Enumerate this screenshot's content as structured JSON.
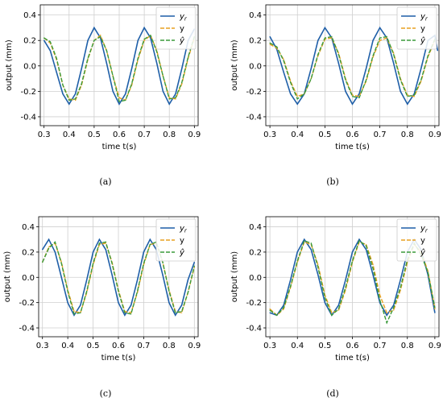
{
  "chart_data": [
    {
      "type": "line",
      "caption": "(a)",
      "xlabel": "time t(s)",
      "ylabel": "output (mm)",
      "xlim": [
        0.285,
        0.915
      ],
      "ylim": [
        -0.47,
        0.48
      ],
      "xticks": [
        "0.3",
        "0.4",
        "0.5",
        "0.6",
        "0.7",
        "0.8",
        "0.9"
      ],
      "yticks": [
        "0.4",
        "0.2",
        "0.0",
        "-0.2",
        "-0.4"
      ],
      "grid": true,
      "legend_position": "top-right",
      "colors": {
        "yr": "#1f5fa8",
        "y": "#e8a020",
        "yhat": "#3a9a3a"
      },
      "series": [
        {
          "name": "y_r",
          "label_main": "y",
          "label_sub": "r",
          "x": [
            0.3,
            0.325,
            0.35,
            0.375,
            0.4,
            0.425,
            0.45,
            0.475,
            0.5,
            0.525,
            0.55,
            0.575,
            0.6,
            0.625,
            0.65,
            0.675,
            0.7,
            0.725,
            0.75,
            0.775,
            0.8,
            0.825,
            0.85,
            0.875,
            0.9
          ],
          "y": [
            0.2,
            0.12,
            -0.05,
            -0.22,
            -0.3,
            -0.22,
            -0.02,
            0.2,
            0.3,
            0.22,
            0.02,
            -0.2,
            -0.3,
            -0.22,
            -0.02,
            0.2,
            0.3,
            0.22,
            0.02,
            -0.2,
            -0.3,
            -0.22,
            -0.02,
            0.2,
            0.29
          ]
        },
        {
          "name": "y",
          "x": [
            0.3,
            0.325,
            0.35,
            0.375,
            0.4,
            0.425,
            0.45,
            0.475,
            0.5,
            0.525,
            0.55,
            0.575,
            0.6,
            0.625,
            0.65,
            0.675,
            0.7,
            0.725,
            0.75,
            0.775,
            0.8,
            0.825,
            0.85,
            0.875,
            0.9
          ],
          "y": [
            0.22,
            0.18,
            0.05,
            -0.15,
            -0.26,
            -0.27,
            -0.15,
            0.05,
            0.2,
            0.24,
            0.12,
            -0.08,
            -0.25,
            -0.27,
            -0.15,
            0.05,
            0.2,
            0.24,
            0.12,
            -0.08,
            -0.25,
            -0.26,
            -0.14,
            0.06,
            0.22
          ]
        },
        {
          "name": "y_hat",
          "label_main": "ŷ",
          "x": [
            0.3,
            0.325,
            0.35,
            0.375,
            0.4,
            0.425,
            0.45,
            0.475,
            0.5,
            0.525,
            0.55,
            0.575,
            0.6,
            0.625,
            0.65,
            0.675,
            0.7,
            0.725,
            0.75,
            0.775,
            0.8,
            0.825,
            0.85,
            0.875,
            0.9
          ],
          "y": [
            0.22,
            0.19,
            0.06,
            -0.15,
            -0.27,
            -0.26,
            -0.14,
            0.06,
            0.2,
            0.23,
            0.12,
            -0.08,
            -0.28,
            -0.27,
            -0.14,
            0.06,
            0.21,
            0.24,
            0.11,
            -0.08,
            -0.26,
            -0.25,
            -0.13,
            0.07,
            0.23
          ]
        }
      ]
    },
    {
      "type": "line",
      "caption": "(b)",
      "xlabel": "time t(s)",
      "ylabel": "output (mm)",
      "xlim": [
        0.285,
        0.915
      ],
      "ylim": [
        -0.47,
        0.48
      ],
      "xticks": [
        "0.3",
        "0.4",
        "0.5",
        "0.6",
        "0.7",
        "0.8",
        "0.9"
      ],
      "yticks": [
        "0.4",
        "0.2",
        "0.0",
        "-0.2",
        "-0.4"
      ],
      "grid": true,
      "legend_position": "top-right",
      "colors": {
        "yr": "#1f5fa8",
        "y": "#e8a020",
        "yhat": "#3a9a3a"
      },
      "series": [
        {
          "name": "y_r",
          "label_main": "y",
          "label_sub": "r",
          "x": [
            0.3,
            0.325,
            0.35,
            0.375,
            0.4,
            0.425,
            0.45,
            0.475,
            0.5,
            0.525,
            0.55,
            0.575,
            0.6,
            0.625,
            0.65,
            0.675,
            0.7,
            0.725,
            0.75,
            0.775,
            0.8,
            0.825,
            0.85,
            0.875,
            0.9,
            0.91
          ],
          "y": [
            0.23,
            0.13,
            -0.05,
            -0.22,
            -0.3,
            -0.22,
            -0.02,
            0.2,
            0.3,
            0.22,
            0.02,
            -0.2,
            -0.3,
            -0.22,
            -0.02,
            0.2,
            0.3,
            0.22,
            0.02,
            -0.2,
            -0.3,
            -0.22,
            -0.02,
            0.2,
            0.24,
            0.12
          ]
        },
        {
          "name": "y",
          "x": [
            0.3,
            0.325,
            0.35,
            0.375,
            0.4,
            0.425,
            0.45,
            0.475,
            0.5,
            0.525,
            0.55,
            0.575,
            0.6,
            0.625,
            0.65,
            0.675,
            0.7,
            0.725,
            0.75,
            0.775,
            0.8,
            0.825,
            0.85,
            0.875,
            0.9
          ],
          "y": [
            0.17,
            0.14,
            0.05,
            -0.12,
            -0.24,
            -0.22,
            -0.1,
            0.08,
            0.21,
            0.22,
            0.1,
            -0.1,
            -0.23,
            -0.24,
            -0.12,
            0.07,
            0.2,
            0.22,
            0.1,
            -0.1,
            -0.23,
            -0.24,
            -0.12,
            0.07,
            0.2
          ]
        },
        {
          "name": "y_hat",
          "label_main": "ŷ",
          "x": [
            0.3,
            0.325,
            0.35,
            0.375,
            0.4,
            0.425,
            0.45,
            0.475,
            0.5,
            0.525,
            0.55,
            0.575,
            0.6,
            0.625,
            0.65,
            0.675,
            0.7,
            0.725,
            0.75,
            0.775,
            0.8,
            0.825,
            0.85,
            0.875,
            0.9
          ],
          "y": [
            0.18,
            0.15,
            0.04,
            -0.13,
            -0.26,
            -0.22,
            -0.1,
            0.09,
            0.22,
            0.23,
            0.09,
            -0.11,
            -0.24,
            -0.25,
            -0.11,
            0.08,
            0.22,
            0.23,
            0.09,
            -0.11,
            -0.24,
            -0.23,
            -0.11,
            0.08,
            0.21
          ]
        }
      ]
    },
    {
      "type": "line",
      "caption": "(c)",
      "xlabel": "time t(s)",
      "ylabel": "output (mm)",
      "xlim": [
        0.285,
        0.915
      ],
      "ylim": [
        -0.47,
        0.48
      ],
      "xticks": [
        "0.3",
        "0.4",
        "0.5",
        "0.6",
        "0.7",
        "0.8",
        "0.9"
      ],
      "yticks": [
        "0.4",
        "0.2",
        "0.0",
        "-0.2",
        "-0.4"
      ],
      "grid": true,
      "legend_position": "top-right",
      "colors": {
        "yr": "#1f5fa8",
        "y": "#e8a020",
        "yhat": "#3a9a3a"
      },
      "series": [
        {
          "name": "y_r",
          "label_main": "y",
          "label_sub": "r",
          "x": [
            0.3,
            0.325,
            0.35,
            0.375,
            0.4,
            0.425,
            0.45,
            0.475,
            0.5,
            0.525,
            0.55,
            0.575,
            0.6,
            0.625,
            0.65,
            0.675,
            0.7,
            0.725,
            0.75,
            0.775,
            0.8,
            0.825,
            0.85,
            0.875,
            0.9
          ],
          "y": [
            0.22,
            0.3,
            0.2,
            0.0,
            -0.2,
            -0.3,
            -0.22,
            -0.02,
            0.2,
            0.3,
            0.22,
            0.02,
            -0.2,
            -0.3,
            -0.22,
            -0.02,
            0.2,
            0.3,
            0.22,
            0.02,
            -0.2,
            -0.3,
            -0.22,
            -0.02,
            0.12
          ]
        },
        {
          "name": "y",
          "x": [
            0.3,
            0.325,
            0.35,
            0.375,
            0.4,
            0.425,
            0.45,
            0.475,
            0.5,
            0.525,
            0.55,
            0.575,
            0.6,
            0.625,
            0.65,
            0.675,
            0.7,
            0.725,
            0.75,
            0.775,
            0.8,
            0.825,
            0.85,
            0.875,
            0.9
          ],
          "y": [
            0.12,
            0.24,
            0.27,
            0.12,
            -0.1,
            -0.27,
            -0.28,
            -0.12,
            0.1,
            0.26,
            0.27,
            0.12,
            -0.1,
            -0.27,
            -0.28,
            -0.12,
            0.1,
            0.26,
            0.27,
            0.12,
            -0.1,
            -0.27,
            -0.28,
            -0.12,
            0.08
          ]
        },
        {
          "name": "y_hat",
          "label_main": "ŷ",
          "x": [
            0.3,
            0.325,
            0.35,
            0.375,
            0.4,
            0.425,
            0.45,
            0.475,
            0.5,
            0.525,
            0.55,
            0.575,
            0.6,
            0.625,
            0.65,
            0.675,
            0.7,
            0.725,
            0.75,
            0.775,
            0.8,
            0.825,
            0.85,
            0.875,
            0.9
          ],
          "y": [
            0.12,
            0.23,
            0.28,
            0.11,
            -0.11,
            -0.29,
            -0.28,
            -0.11,
            0.11,
            0.27,
            0.28,
            0.11,
            -0.11,
            -0.28,
            -0.29,
            -0.11,
            0.11,
            0.26,
            0.28,
            0.12,
            -0.11,
            -0.28,
            -0.27,
            -0.12,
            0.09
          ]
        }
      ]
    },
    {
      "type": "line",
      "caption": "(d)",
      "xlabel": "time t(s)",
      "ylabel": "output (mm)",
      "xlim": [
        0.285,
        0.915
      ],
      "ylim": [
        -0.47,
        0.48
      ],
      "xticks": [
        "0.3",
        "0.4",
        "0.5",
        "0.6",
        "0.7",
        "0.8",
        "0.9"
      ],
      "yticks": [
        "0.4",
        "0.2",
        "0.0",
        "-0.2",
        "-0.4"
      ],
      "grid": true,
      "legend_position": "top-right",
      "colors": {
        "yr": "#1f5fa8",
        "y": "#e8a020",
        "yhat": "#3a9a3a"
      },
      "series": [
        {
          "name": "y_r",
          "label_main": "y",
          "label_sub": "r",
          "x": [
            0.3,
            0.325,
            0.35,
            0.375,
            0.4,
            0.425,
            0.45,
            0.475,
            0.5,
            0.525,
            0.55,
            0.575,
            0.6,
            0.625,
            0.65,
            0.675,
            0.7,
            0.725,
            0.75,
            0.775,
            0.8,
            0.825,
            0.85,
            0.875,
            0.9
          ],
          "y": [
            -0.28,
            -0.3,
            -0.22,
            -0.02,
            0.2,
            0.3,
            0.22,
            0.02,
            -0.2,
            -0.3,
            -0.22,
            -0.02,
            0.2,
            0.3,
            0.22,
            0.02,
            -0.2,
            -0.3,
            -0.22,
            -0.02,
            0.2,
            0.3,
            0.22,
            0.02,
            -0.28
          ]
        },
        {
          "name": "y",
          "x": [
            0.3,
            0.325,
            0.35,
            0.375,
            0.4,
            0.425,
            0.45,
            0.475,
            0.5,
            0.525,
            0.55,
            0.575,
            0.6,
            0.625,
            0.65,
            0.675,
            0.7,
            0.725,
            0.75,
            0.775,
            0.8,
            0.825,
            0.85,
            0.875,
            0.9
          ],
          "y": [
            -0.25,
            -0.3,
            -0.25,
            -0.08,
            0.12,
            0.28,
            0.26,
            0.1,
            -0.14,
            -0.28,
            -0.26,
            -0.1,
            0.12,
            0.28,
            0.26,
            0.1,
            -0.14,
            -0.28,
            -0.26,
            -0.1,
            0.12,
            0.26,
            0.2,
            0.05,
            -0.25
          ]
        },
        {
          "name": "y_hat",
          "label_main": "ŷ",
          "x": [
            0.3,
            0.325,
            0.35,
            0.375,
            0.4,
            0.425,
            0.45,
            0.475,
            0.5,
            0.525,
            0.55,
            0.575,
            0.6,
            0.625,
            0.65,
            0.675,
            0.7,
            0.725,
            0.75,
            0.775,
            0.8,
            0.825,
            0.85,
            0.875,
            0.9
          ],
          "y": [
            -0.26,
            -0.3,
            -0.24,
            -0.07,
            0.13,
            0.29,
            0.27,
            0.08,
            -0.16,
            -0.3,
            -0.25,
            -0.08,
            0.13,
            0.29,
            0.25,
            0.07,
            -0.18,
            -0.36,
            -0.24,
            -0.08,
            0.14,
            0.27,
            0.18,
            0.04,
            -0.24
          ]
        }
      ]
    }
  ]
}
